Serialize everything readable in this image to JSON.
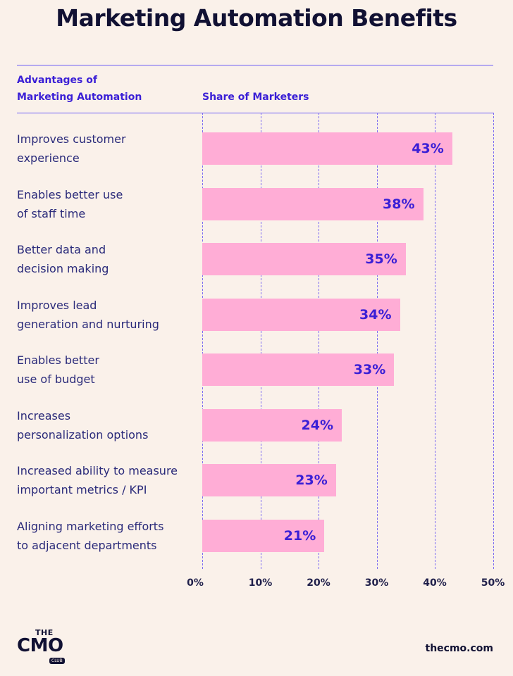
{
  "title": "Marketing Automation Benefits",
  "header": {
    "left_line1": "Advantages of",
    "left_line2": "Marketing Automation",
    "right": "Share of Marketers"
  },
  "footer": {
    "logo_the": "THE",
    "logo_cmo": "CMO",
    "logo_club": "CLUB",
    "site": "thecmo.com"
  },
  "colors": {
    "bar": "#ffadd6",
    "label": "#3a1fd6",
    "grid": "#7d6cf2",
    "background": "#faf1ea"
  },
  "chart_data": {
    "type": "bar",
    "orientation": "horizontal",
    "title": "Marketing Automation Benefits",
    "xlabel": "Share of Marketers",
    "ylabel": "Advantages of Marketing Automation",
    "xlim": [
      0,
      50
    ],
    "ticks": [
      "0%",
      "10%",
      "20%",
      "30%",
      "40%",
      "50%"
    ],
    "grid": true,
    "categories": [
      [
        "Improves customer",
        "experience"
      ],
      [
        "Enables better use",
        "of staff time"
      ],
      [
        "Better data and",
        "decision making"
      ],
      [
        "Improves lead",
        "generation and nurturing"
      ],
      [
        "Enables better",
        "use of budget"
      ],
      [
        "Increases",
        "personalization options"
      ],
      [
        "Increased ability to measure",
        "important metrics / KPI"
      ],
      [
        "Aligning marketing efforts",
        "to adjacent departments"
      ]
    ],
    "values": [
      43,
      38,
      35,
      34,
      33,
      24,
      23,
      21
    ],
    "value_labels": [
      "43%",
      "38%",
      "35%",
      "34%",
      "33%",
      "24%",
      "23%",
      "21%"
    ]
  }
}
